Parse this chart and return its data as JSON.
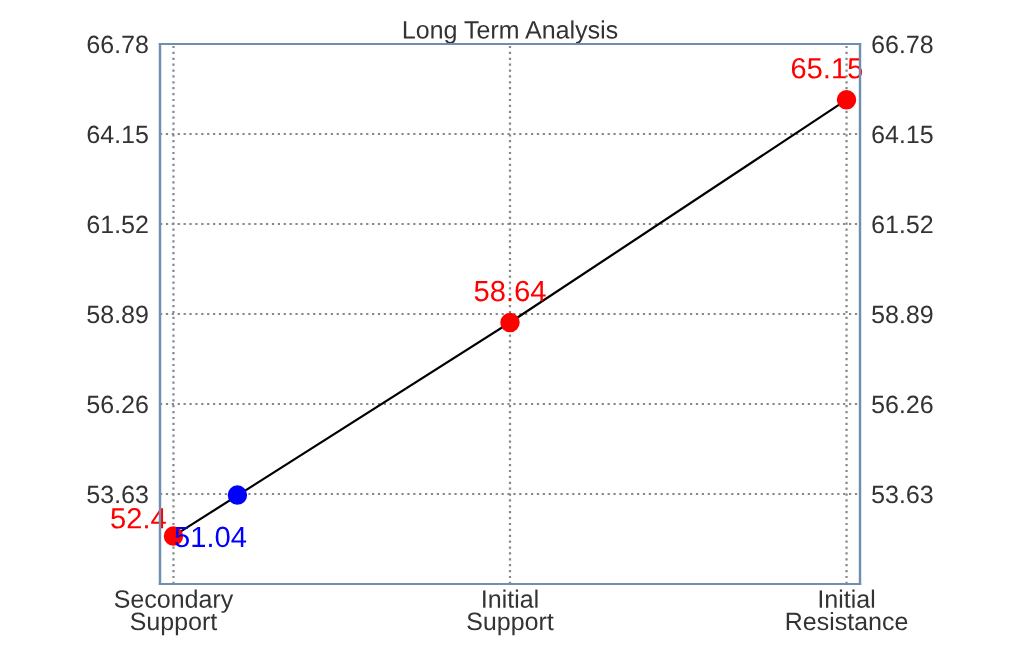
{
  "chart_data": {
    "type": "line",
    "title": "Long Term Analysis",
    "categories": [
      "Secondary\nSupport",
      "Initial\nSupport",
      "Initial\nResistance"
    ],
    "ylim": [
      51.0,
      66.78
    ],
    "yticks": [
      53.63,
      56.26,
      58.89,
      61.52,
      64.15,
      66.78
    ],
    "y2lim": [
      51.0,
      66.78
    ],
    "y2ticks": [
      53.63,
      56.26,
      58.89,
      61.52,
      64.15,
      66.78
    ],
    "grid": true,
    "marker": "circle",
    "line_style": "solid",
    "series": [
      {
        "color": "#000000",
        "marker": "none",
        "values": [
          52.4,
          58.64,
          65.15
        ]
      },
      {
        "type": "scatter",
        "color": "#ff0000",
        "values": [
          52.4,
          58.64,
          65.15
        ],
        "value_labels": [
          "52.4",
          "58.64",
          "65.15"
        ]
      },
      {
        "type": "scatter",
        "color": "#0000ff",
        "values": [
          53.6,
          null,
          null
        ]
      }
    ],
    "annotations": [
      "51.04"
    ]
  }
}
